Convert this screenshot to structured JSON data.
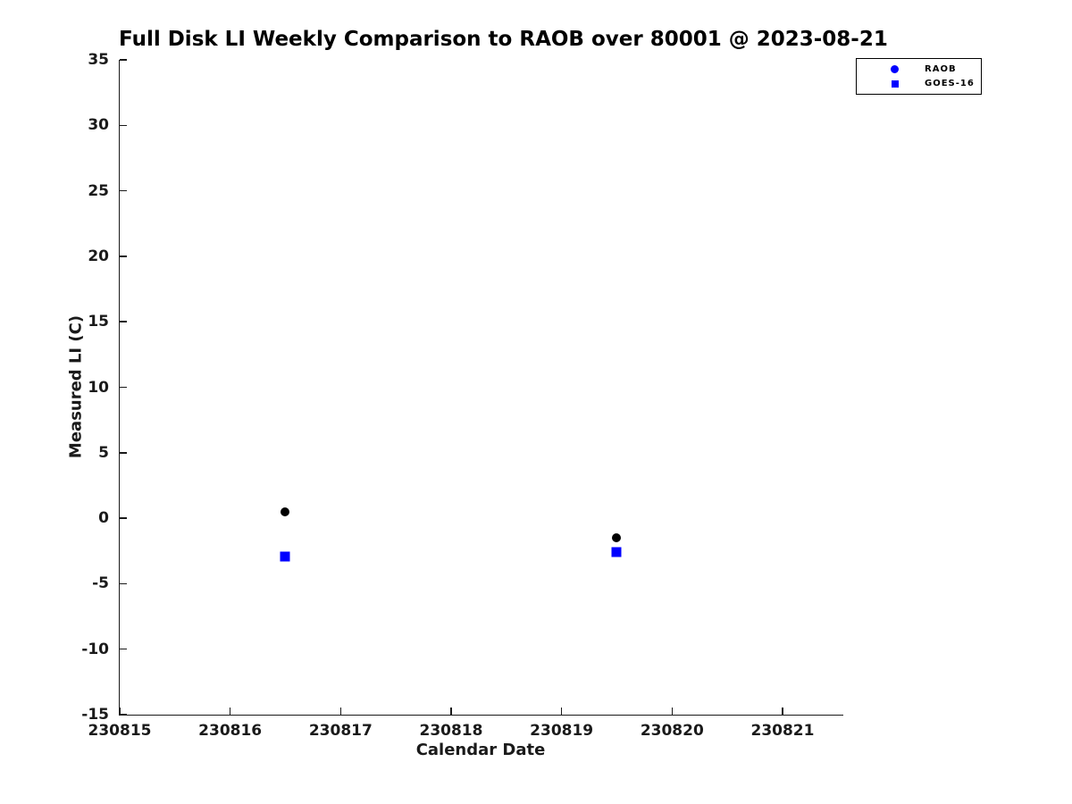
{
  "chart_data": {
    "type": "scatter",
    "title": "Full Disk LI Weekly Comparison to RAOB over 80001 @ 2023-08-21",
    "xlabel": "Calendar Date",
    "ylabel": "Measured LI (C)",
    "xlim": [
      230815,
      230821.55
    ],
    "ylim": [
      -15,
      35
    ],
    "xticks": [
      230815,
      230816,
      230817,
      230818,
      230819,
      230820,
      230821
    ],
    "yticks": [
      35,
      30,
      25,
      20,
      15,
      10,
      5,
      0,
      -5,
      -10,
      -15
    ],
    "grid": false,
    "legend_position": "top-right",
    "axis_color": "#1a1a1a",
    "background_color": "#ffffff",
    "series": [
      {
        "name": "RAOB",
        "marker": "circle",
        "plot_color": "#000000",
        "legend_color": "#0000ff",
        "points": [
          {
            "x": 230816.5,
            "y": 0.5
          },
          {
            "x": 230819.5,
            "y": -1.5
          }
        ]
      },
      {
        "name": "GOES-16",
        "marker": "square",
        "plot_color": "#0000ff",
        "legend_color": "#0000ff",
        "points": [
          {
            "x": 230816.5,
            "y": -2.9
          },
          {
            "x": 230819.5,
            "y": -2.6
          }
        ]
      }
    ]
  }
}
